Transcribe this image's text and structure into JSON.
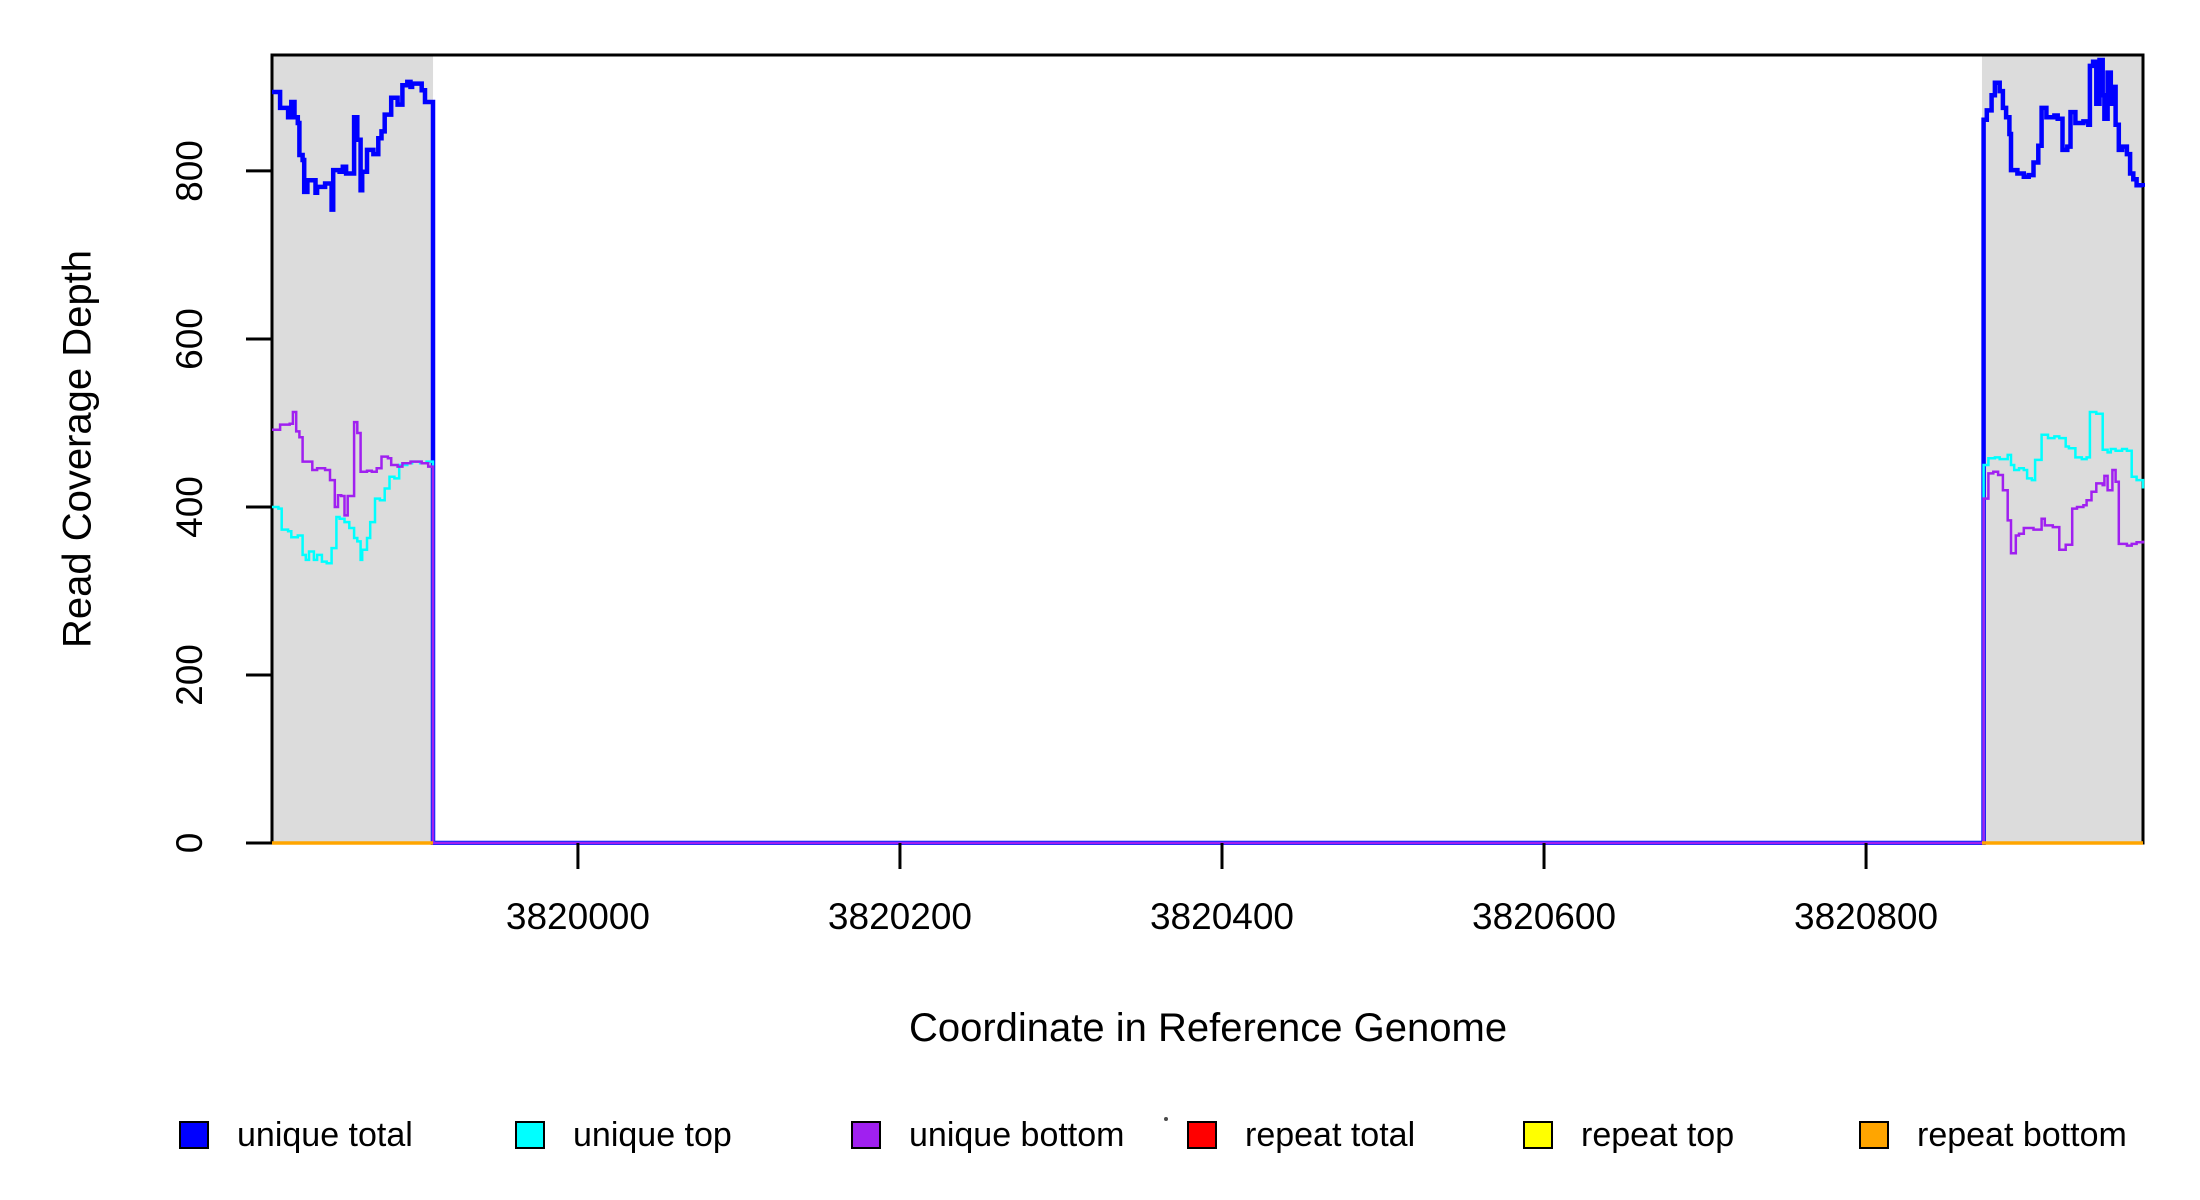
{
  "figure": {
    "x_axis_title": "Coordinate in Reference Genome",
    "y_axis_title": "Read Coverage Depth"
  },
  "legend": {
    "position": "bottom",
    "items": [
      {
        "label": "unique total",
        "color": "#0000FF"
      },
      {
        "label": "unique top",
        "color": "#00FFFF"
      },
      {
        "label": "unique bottom",
        "color": "#A020F0"
      },
      {
        "label": "repeat total",
        "color": "#FF0000"
      },
      {
        "label": "repeat top",
        "color": "#FFFF00"
      },
      {
        "label": "repeat bottom",
        "color": "#FFA500"
      }
    ]
  },
  "chart_data": {
    "type": "line",
    "step": true,
    "xlabel": "Coordinate in Reference Genome",
    "ylabel": "Read Coverage Depth",
    "xlim": [
      3819810,
      3820972
    ],
    "ylim": [
      0,
      938
    ],
    "grid": false,
    "x_ticks": [
      3820000,
      3820200,
      3820400,
      3820600,
      3820800
    ],
    "x_tick_labels": [
      "3820000",
      "3820200",
      "3820400",
      "3820600",
      "3820800"
    ],
    "y_ticks": [
      0,
      200,
      400,
      600,
      800
    ],
    "y_tick_labels": [
      "0",
      "200",
      "400",
      "600",
      "800"
    ],
    "highlight_regions": [
      {
        "x0": 3819810,
        "x1": 3819910,
        "color": "#DCDCDC"
      },
      {
        "x0": 3820872,
        "x1": 3820972,
        "color": "#DCDCDC"
      }
    ],
    "series": [
      {
        "name": "unique total",
        "color": "#0000FF",
        "width": 4.5,
        "segments": [
          [
            [
              3819810,
              894
            ],
            [
              3819815,
              875
            ],
            [
              3819820,
              864
            ],
            [
              3819822,
              882
            ],
            [
              3819824,
              864
            ],
            [
              3819826,
              857
            ],
            [
              3819827,
              819
            ],
            [
              3819829,
              813
            ],
            [
              3819830,
              775
            ],
            [
              3819832,
              789
            ],
            [
              3819837,
              774
            ],
            [
              3819838,
              781
            ],
            [
              3819843,
              785
            ],
            [
              3819847,
              754
            ],
            [
              3819848,
              801
            ],
            [
              3819852,
              799
            ],
            [
              3819854,
              805
            ],
            [
              3819856,
              797
            ],
            [
              3819861,
              864
            ],
            [
              3819863,
              837
            ],
            [
              3819865,
              777
            ],
            [
              3819866,
              799
            ],
            [
              3819869,
              825
            ],
            [
              3819873,
              820
            ],
            [
              3819876,
              839
            ],
            [
              3819878,
              847
            ],
            [
              3819880,
              867
            ],
            [
              3819884,
              887
            ],
            [
              3819888,
              879
            ],
            [
              3819891,
              902
            ],
            [
              3819894,
              906
            ],
            [
              3819896,
              900
            ],
            [
              3819897,
              904
            ],
            [
              3819903,
              896
            ],
            [
              3819905,
              882
            ],
            [
              3819908,
              882
            ],
            [
              3819910,
              0
            ],
            [
              3820872,
              0
            ],
            [
              3820873,
              861
            ],
            [
              3820875,
              872
            ],
            [
              3820878,
              890
            ],
            [
              3820880,
              905
            ],
            [
              3820883,
              895
            ],
            [
              3820885,
              875
            ],
            [
              3820887,
              864
            ],
            [
              3820889,
              844
            ],
            [
              3820890,
              801
            ],
            [
              3820894,
              797
            ],
            [
              3820898,
              793
            ],
            [
              3820901,
              795
            ],
            [
              3820904,
              810
            ],
            [
              3820907,
              830
            ],
            [
              3820909,
              875
            ],
            [
              3820912,
              864
            ],
            [
              3820917,
              866
            ],
            [
              3820919,
              862
            ],
            [
              3820922,
              825
            ],
            [
              3820925,
              829
            ],
            [
              3820927,
              870
            ],
            [
              3820930,
              857
            ],
            [
              3820935,
              859
            ],
            [
              3820938,
              855
            ],
            [
              3820939,
              925
            ],
            [
              3820941,
              930
            ],
            [
              3820943,
              880
            ],
            [
              3820945,
              932
            ],
            [
              3820947,
              890
            ],
            [
              3820948,
              862
            ],
            [
              3820950,
              917
            ],
            [
              3820952,
              880
            ],
            [
              3820953,
              900
            ],
            [
              3820955,
              855
            ],
            [
              3820957,
              825
            ],
            [
              3820959,
              829
            ],
            [
              3820962,
              820
            ],
            [
              3820964,
              797
            ],
            [
              3820966,
              790
            ],
            [
              3820968,
              783
            ],
            [
              3820972,
              781
            ]
          ]
        ]
      },
      {
        "name": "unique top",
        "color": "#00FFFF",
        "width": 2.5,
        "segments": [
          [
            [
              3819810,
              400
            ],
            [
              3819814,
              398
            ],
            [
              3819816,
              373
            ],
            [
              3819820,
              371
            ],
            [
              3819822,
              364
            ],
            [
              3819826,
              366
            ],
            [
              3819829,
              343
            ],
            [
              3819831,
              337
            ],
            [
              3819833,
              347
            ],
            [
              3819836,
              337
            ],
            [
              3819838,
              343
            ],
            [
              3819841,
              335
            ],
            [
              3819844,
              333
            ],
            [
              3819847,
              351
            ],
            [
              3819850,
              388
            ],
            [
              3819852,
              386
            ],
            [
              3819855,
              382
            ],
            [
              3819858,
              375
            ],
            [
              3819861,
              363
            ],
            [
              3819863,
              359
            ],
            [
              3819865,
              337
            ],
            [
              3819866,
              349
            ],
            [
              3819869,
              363
            ],
            [
              3819871,
              382
            ],
            [
              3819874,
              410
            ],
            [
              3819877,
              408
            ],
            [
              3819880,
              422
            ],
            [
              3819883,
              436
            ],
            [
              3819886,
              434
            ],
            [
              3819889,
              450
            ],
            [
              3819894,
              452
            ],
            [
              3819897,
              454
            ],
            [
              3819902,
              452
            ],
            [
              3819906,
              454
            ],
            [
              3819910,
              0
            ],
            [
              3820872,
              0
            ],
            [
              3820873,
              450
            ],
            [
              3820876,
              458
            ],
            [
              3820880,
              459
            ],
            [
              3820883,
              457
            ],
            [
              3820888,
              462
            ],
            [
              3820890,
              450
            ],
            [
              3820892,
              444
            ],
            [
              3820895,
              446
            ],
            [
              3820898,
              444
            ],
            [
              3820900,
              434
            ],
            [
              3820903,
              432
            ],
            [
              3820905,
              456
            ],
            [
              3820909,
              486
            ],
            [
              3820913,
              482
            ],
            [
              3820917,
              484
            ],
            [
              3820920,
              482
            ],
            [
              3820924,
              472
            ],
            [
              3820926,
              470
            ],
            [
              3820930,
              459
            ],
            [
              3820934,
              457
            ],
            [
              3820937,
              459
            ],
            [
              3820939,
              513
            ],
            [
              3820943,
              511
            ],
            [
              3820947,
              468
            ],
            [
              3820950,
              465
            ],
            [
              3820952,
              469
            ],
            [
              3820955,
              467
            ],
            [
              3820959,
              469
            ],
            [
              3820962,
              467
            ],
            [
              3820965,
              436
            ],
            [
              3820968,
              432
            ],
            [
              3820972,
              422
            ]
          ]
        ]
      },
      {
        "name": "unique bottom",
        "color": "#A020F0",
        "width": 2.5,
        "segments": [
          [
            [
              3819810,
              492
            ],
            [
              3819815,
              498
            ],
            [
              3819821,
              499
            ],
            [
              3819823,
              513
            ],
            [
              3819825,
              490
            ],
            [
              3819827,
              483
            ],
            [
              3819829,
              454
            ],
            [
              3819833,
              454
            ],
            [
              3819835,
              444
            ],
            [
              3819838,
              446
            ],
            [
              3819843,
              444
            ],
            [
              3819846,
              432
            ],
            [
              3819849,
              400
            ],
            [
              3819851,
              414
            ],
            [
              3819853,
              413
            ],
            [
              3819855,
              390
            ],
            [
              3819857,
              413
            ],
            [
              3819861,
              501
            ],
            [
              3819863,
              488
            ],
            [
              3819865,
              442
            ],
            [
              3819869,
              443
            ],
            [
              3819872,
              442
            ],
            [
              3819875,
              446
            ],
            [
              3819878,
              460
            ],
            [
              3819882,
              458
            ],
            [
              3819884,
              450
            ],
            [
              3819888,
              448
            ],
            [
              3819891,
              452
            ],
            [
              3819896,
              454
            ],
            [
              3819901,
              454
            ],
            [
              3819903,
              452
            ],
            [
              3819907,
              448
            ],
            [
              3819910,
              0
            ],
            [
              3820872,
              0
            ],
            [
              3820873,
              410
            ],
            [
              3820876,
              440
            ],
            [
              3820879,
              442
            ],
            [
              3820882,
              438
            ],
            [
              3820885,
              420
            ],
            [
              3820888,
              384
            ],
            [
              3820890,
              345
            ],
            [
              3820893,
              366
            ],
            [
              3820895,
              368
            ],
            [
              3820898,
              375
            ],
            [
              3820904,
              373
            ],
            [
              3820909,
              386
            ],
            [
              3820911,
              378
            ],
            [
              3820916,
              376
            ],
            [
              3820920,
              349
            ],
            [
              3820924,
              355
            ],
            [
              3820928,
              398
            ],
            [
              3820931,
              400
            ],
            [
              3820935,
              402
            ],
            [
              3820937,
              408
            ],
            [
              3820940,
              418
            ],
            [
              3820943,
              428
            ],
            [
              3820947,
              426
            ],
            [
              3820948,
              437
            ],
            [
              3820950,
              420
            ],
            [
              3820953,
              444
            ],
            [
              3820955,
              430
            ],
            [
              3820957,
              356
            ],
            [
              3820962,
              354
            ],
            [
              3820965,
              356
            ],
            [
              3820968,
              358
            ],
            [
              3820972,
              360
            ]
          ]
        ]
      },
      {
        "name": "repeat total",
        "color": "#FF0000",
        "width": 2.5,
        "segments": [
          [
            [
              3819810,
              0
            ],
            [
              3819910,
              0
            ]
          ],
          [
            [
              3820872,
              0
            ],
            [
              3820972,
              0
            ]
          ]
        ]
      },
      {
        "name": "repeat top",
        "color": "#FFFF00",
        "width": 2.5,
        "segments": [
          [
            [
              3819810,
              0
            ],
            [
              3819910,
              0
            ]
          ],
          [
            [
              3820872,
              0
            ],
            [
              3820972,
              0
            ]
          ]
        ]
      },
      {
        "name": "repeat bottom",
        "color": "#FFA500",
        "width": 3.5,
        "segments": [
          [
            [
              3819810,
              0
            ],
            [
              3819910,
              0
            ]
          ],
          [
            [
              3820872,
              0
            ],
            [
              3820972,
              0
            ]
          ]
        ]
      }
    ]
  }
}
